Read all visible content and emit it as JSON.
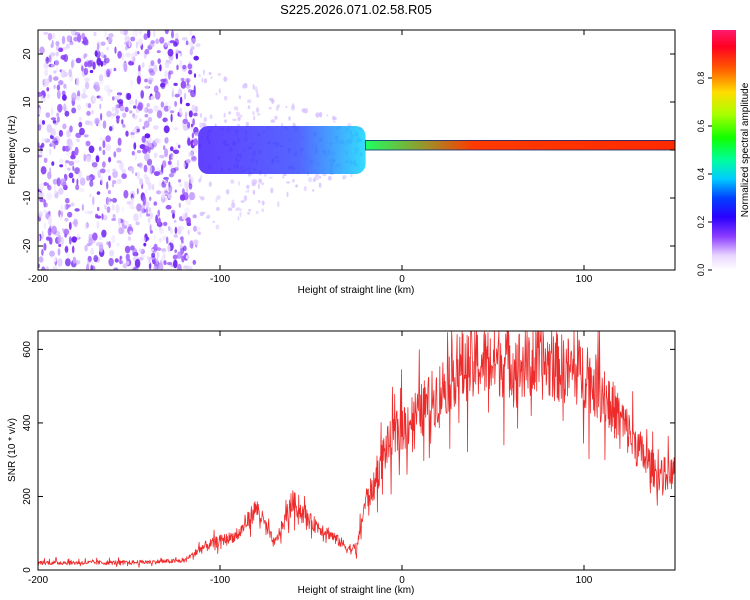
{
  "title": "S225.2026.071.02.58.R05",
  "colors": {
    "axis": "#000000",
    "snr_line": "#ee2b2b",
    "background": "#ffffff"
  },
  "chart_data": [
    {
      "type": "heatmap",
      "name": "spectrogram",
      "xlabel": "Height of straight line (km)",
      "ylabel": "Frequency (Hz)",
      "xlim": [
        -200,
        150
      ],
      "ylim": [
        -25,
        25
      ],
      "xticks": [
        -200,
        -100,
        0,
        100
      ],
      "yticks": [
        -20,
        -10,
        0,
        10,
        20
      ],
      "colorbar": {
        "label": "Normalized spectral amplitude",
        "range": [
          0,
          1
        ],
        "ticks": [
          0.0,
          0.2,
          0.4,
          0.6,
          0.8
        ]
      },
      "regions": [
        {
          "x_range": [
            -200,
            -112
          ],
          "freq_range": [
            -25,
            25
          ],
          "amplitude": 0.05,
          "description": "broad noise"
        },
        {
          "x_range": [
            -112,
            -20
          ],
          "freq_range": [
            -5,
            5
          ],
          "amplitude": 0.25
        },
        {
          "x_range": [
            -20,
            150
          ],
          "freq_range": [
            0,
            2
          ],
          "amplitude": 0.9
        }
      ]
    },
    {
      "type": "line",
      "name": "snr",
      "xlabel": "Height of straight line (km)",
      "ylabel": "SNR (10 * v/v)",
      "xlim": [
        -200,
        150
      ],
      "ylim": [
        0,
        650
      ],
      "xticks": [
        -200,
        -100,
        0,
        100
      ],
      "yticks": [
        0,
        200,
        400,
        600
      ],
      "series": [
        {
          "name": "SNR",
          "x": [
            -200,
            -150,
            -120,
            -110,
            -100,
            -90,
            -80,
            -70,
            -60,
            -50,
            -40,
            -30,
            -25,
            -20,
            -15,
            -10,
            0,
            10,
            20,
            30,
            40,
            50,
            60,
            70,
            80,
            90,
            100,
            110,
            120,
            130,
            140,
            150
          ],
          "values": [
            20,
            20,
            25,
            60,
            80,
            95,
            170,
            70,
            185,
            130,
            100,
            60,
            55,
            190,
            230,
            320,
            390,
            430,
            480,
            545,
            560,
            570,
            565,
            555,
            560,
            545,
            535,
            480,
            410,
            330,
            260,
            265
          ]
        }
      ]
    }
  ]
}
